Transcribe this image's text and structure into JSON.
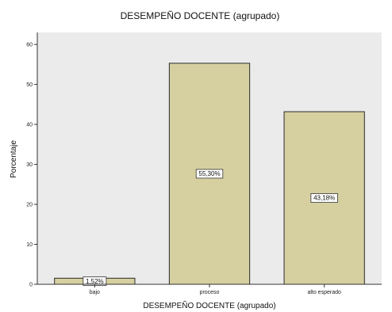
{
  "chart_data": {
    "type": "bar",
    "title": "DESEMPEÑO DOCENTE (agrupado)",
    "xlabel": "DESEMPEÑO DOCENTE (agrupado)",
    "ylabel": "Porcentaje",
    "categories": [
      "bajo",
      "proceso",
      "alto esperado"
    ],
    "values": [
      1.52,
      55.3,
      43.18
    ],
    "data_labels": [
      "1,52%",
      "55,30%",
      "43,18%"
    ],
    "yticks": [
      0,
      10,
      20,
      30,
      40,
      50,
      60
    ],
    "ylim": [
      0,
      63
    ],
    "grid": false,
    "legend": "none",
    "colors": {
      "plot_bg": "#ebebeb",
      "bar_fill": "#d6cfa0",
      "bar_stroke": "#2b2b2b",
      "axis": "#333333"
    }
  }
}
